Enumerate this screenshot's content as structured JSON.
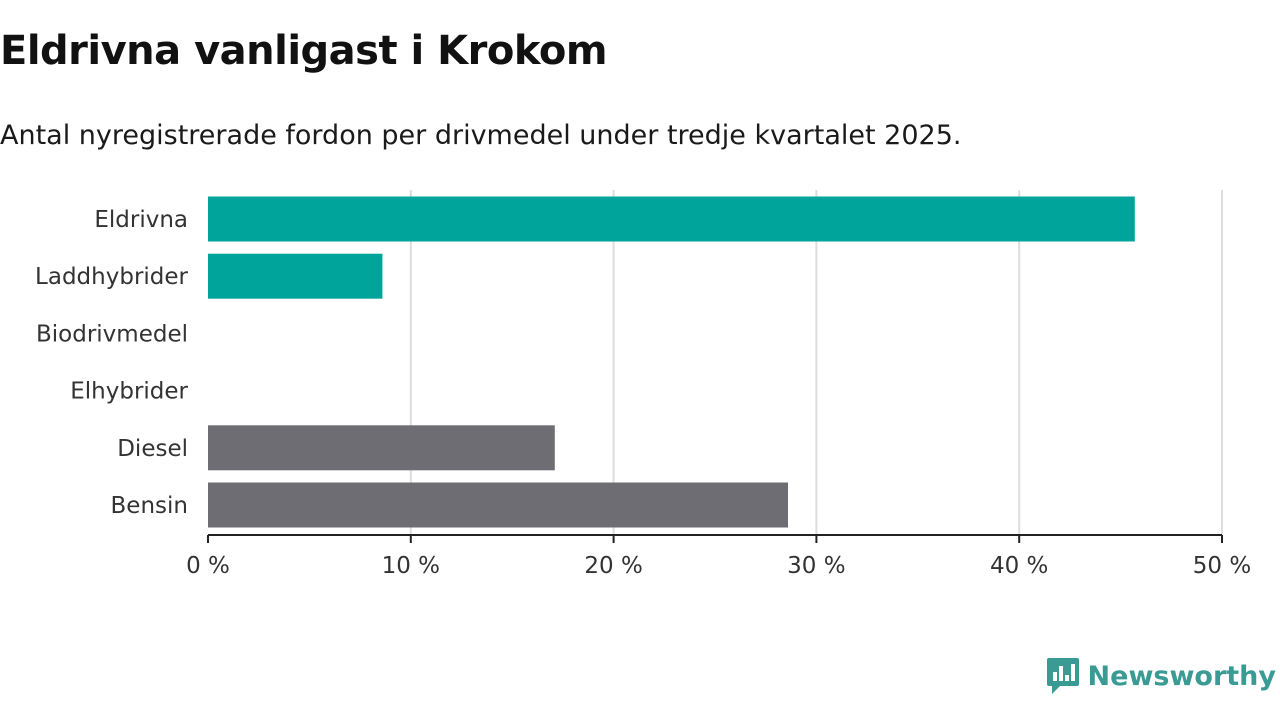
{
  "title": "Eldrivna vanligast i Krokom",
  "subtitle": "Antal nyregistrerade fordon per drivmedel under tredje kvartalet 2025.",
  "brand": {
    "name": "Newsworthy",
    "color": "#3a9b94"
  },
  "colors": {
    "electric": "#00a49a",
    "fossil": "#6e6d73",
    "grid": "#dddddd",
    "axis": "#222222"
  },
  "chart_data": {
    "type": "bar",
    "orientation": "horizontal",
    "categories": [
      "Eldrivna",
      "Laddhybrider",
      "Biodrivmedel",
      "Elhybrider",
      "Diesel",
      "Bensin"
    ],
    "values": [
      45.7,
      8.6,
      0,
      0,
      17.1,
      28.6
    ],
    "groups": [
      "electric",
      "electric",
      "electric",
      "electric",
      "fossil",
      "fossil"
    ],
    "xlim": [
      0,
      50
    ],
    "xticks": [
      0,
      10,
      20,
      30,
      40,
      50
    ],
    "tick_labels": [
      "0 %",
      "10 %",
      "20 %",
      "30 %",
      "40 %",
      "50 %"
    ],
    "xlabel": "",
    "ylabel": "",
    "grid": true
  }
}
